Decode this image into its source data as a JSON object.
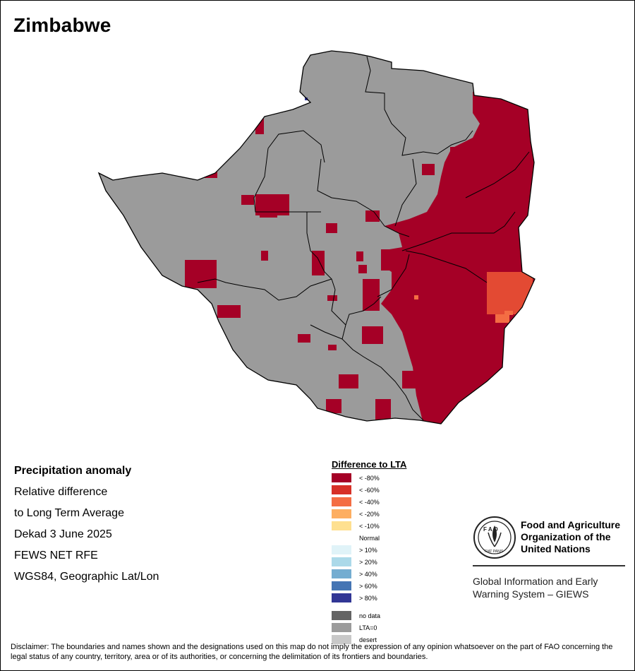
{
  "title": "Zimbabwe",
  "info": {
    "heading": "Precipitation anomaly",
    "line1": "Relative difference",
    "line2": "to Long Term Average",
    "period": "Dekad 3 June 2025",
    "source": "FEWS NET RFE",
    "projection": "WGS84, Geographic Lat/Lon"
  },
  "legend": {
    "title": "Difference to LTA",
    "items": [
      {
        "label": "< -80%",
        "color": "#a50026"
      },
      {
        "label": "< -60%",
        "color": "#d73027"
      },
      {
        "label": "< -40%",
        "color": "#f46d43"
      },
      {
        "label": "< -20%",
        "color": "#fdae61"
      },
      {
        "label": "< -10%",
        "color": "#fee090"
      },
      {
        "label": "Normal",
        "color": "#ffffff"
      },
      {
        "label": "> 10%",
        "color": "#e0f3f8"
      },
      {
        "label": "> 20%",
        "color": "#abd9e9"
      },
      {
        "label": "> 40%",
        "color": "#74add1"
      },
      {
        "label": "> 60%",
        "color": "#4575b4"
      },
      {
        "label": "> 80%",
        "color": "#313695"
      }
    ],
    "extra": [
      {
        "label": "no data",
        "color": "#646464"
      },
      {
        "label": "LTA=0",
        "color": "#9b9b9b"
      },
      {
        "label": "desert",
        "color": "#c8c8c8"
      }
    ]
  },
  "fao": {
    "name1": "Food and Agriculture",
    "name2": "Organization of the",
    "name3": "United Nations",
    "logo_letters": "F A O",
    "logo_motto": "FIAT PANIS",
    "giews1": "Global Information and Early",
    "giews2": "Warning System – GIEWS"
  },
  "map_colors": {
    "land": "#9b9b9b",
    "severe_deficit": "#a50026",
    "strong_deficit": "#e34a33",
    "moderate_deficit": "#f46d43",
    "border": "#000000"
  },
  "disclaimer": "Disclaimer: The boundaries and names shown and the designations used on this map do not imply the expression of any opinion whatsoever on the part of FAO concerning the legal status of any country, territory, area or of its authorities, or concerning the delimitation of its frontiers and boundaries."
}
